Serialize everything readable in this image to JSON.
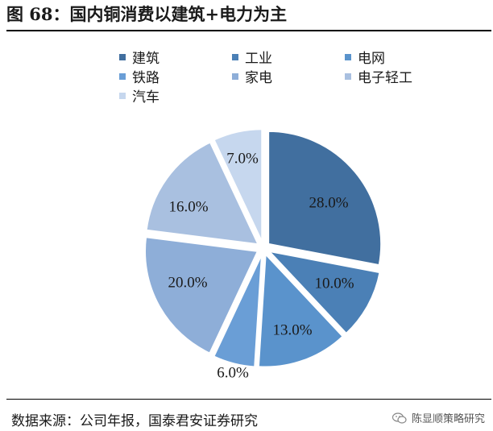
{
  "title": "图 68：国内铜消费以建筑+电力为主",
  "source": "数据来源：公司年报，国泰君安证券研究",
  "brand": "陈显顺策略研究",
  "colors": {
    "建筑": "#416f9f",
    "工业": "#4b80b6",
    "电网": "#5a93cc",
    "铁路": "#6a9ed6",
    "家电": "#8eaed8",
    "电子轻工": "#a9c0e0",
    "汽车": "#c6d7ee"
  },
  "chart_data": {
    "type": "pie",
    "categories": [
      "建筑",
      "工业",
      "电网",
      "铁路",
      "家电",
      "电子轻工",
      "汽车"
    ],
    "values": [
      28.0,
      10.0,
      13.0,
      6.0,
      20.0,
      16.0,
      7.0
    ],
    "labels": [
      "28.0%",
      "10.0%",
      "13.0%",
      "6.0%",
      "20.0%",
      "16.0%",
      "7.0%"
    ],
    "legend_position": "top"
  }
}
